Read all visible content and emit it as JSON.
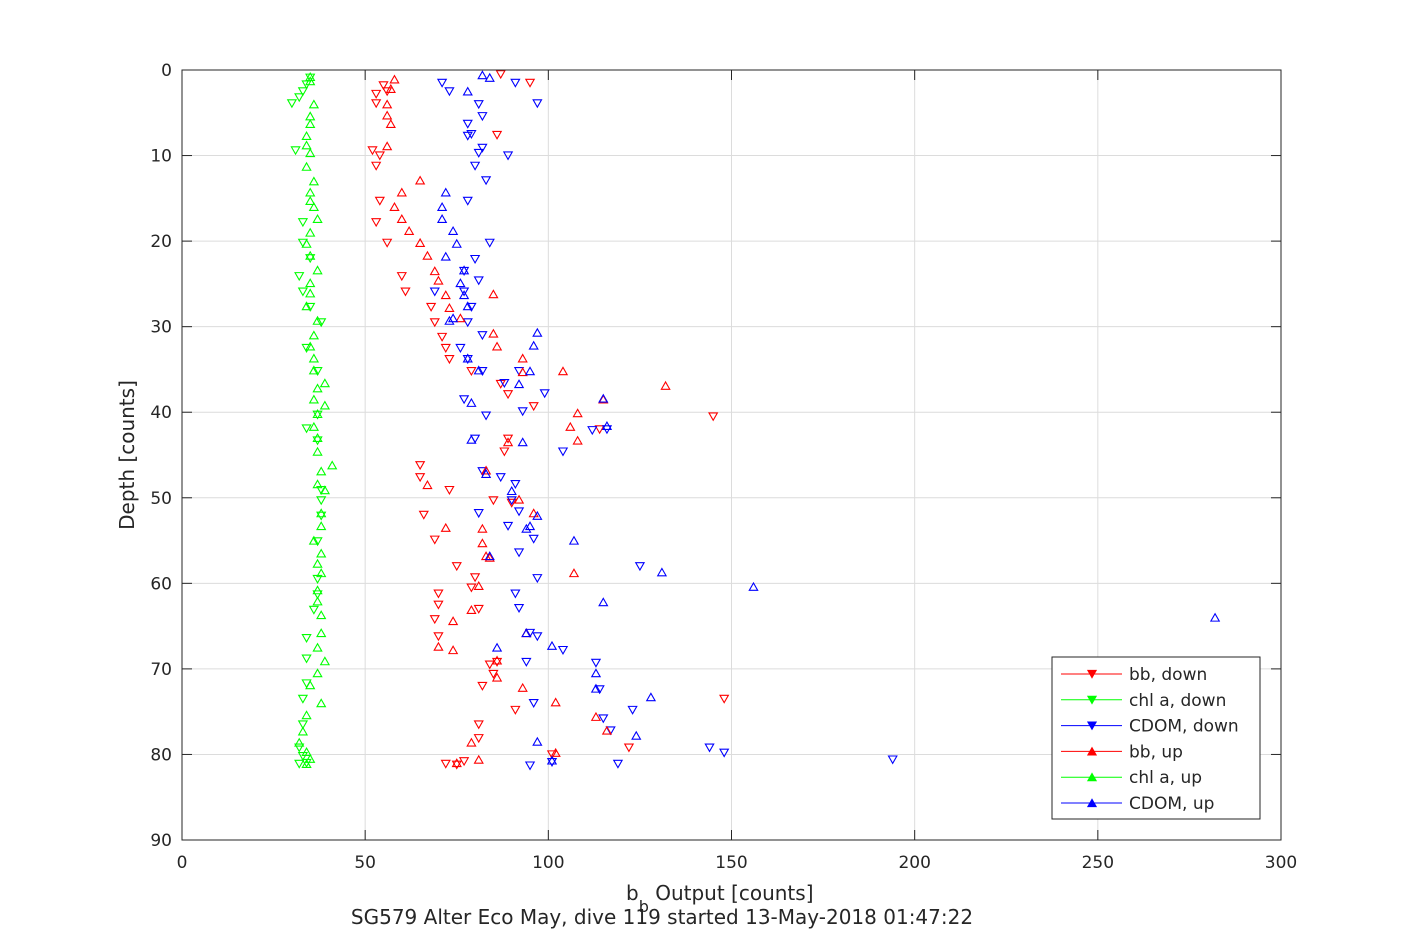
{
  "chart_data": {
    "type": "scatter",
    "xlabel_main": "b",
    "xlabel_sub": "b",
    "xlabel_rest": " Output [counts]",
    "ylabel": "Depth [counts]",
    "caption": "SG579 Alter Eco May, dive 119 started 13-May-2018 01:47:22",
    "xlim": [
      0,
      300
    ],
    "ylim": [
      0,
      90
    ],
    "y_reversed": true,
    "xticks": [
      "0",
      "50",
      "100",
      "150",
      "200",
      "250",
      "300"
    ],
    "yticks": [
      "0",
      "10",
      "20",
      "30",
      "40",
      "50",
      "60",
      "70",
      "80",
      "90"
    ],
    "grid": true,
    "legend_position": "bottom-right",
    "series": [
      {
        "name": "bb, down",
        "color": "#ff0000",
        "marker": "triangle-down",
        "points": [
          [
            87,
            0.5
          ],
          [
            95,
            1.5
          ],
          [
            55,
            1.8
          ],
          [
            56,
            2.5
          ],
          [
            53,
            2.8
          ],
          [
            53,
            3.9
          ],
          [
            52,
            9.4
          ],
          [
            54,
            10
          ],
          [
            53,
            11.2
          ],
          [
            86,
            7.6
          ],
          [
            54,
            15.3
          ],
          [
            53,
            17.8
          ],
          [
            56,
            20.2
          ],
          [
            60,
            24.1
          ],
          [
            61,
            25.9
          ],
          [
            68,
            27.7
          ],
          [
            69,
            29.5
          ],
          [
            71,
            31.2
          ],
          [
            72,
            32.5
          ],
          [
            73,
            33.8
          ],
          [
            79,
            35.2
          ],
          [
            87,
            36.7
          ],
          [
            89,
            37.9
          ],
          [
            96,
            39.3
          ],
          [
            114,
            42
          ],
          [
            145,
            40.5
          ],
          [
            88,
            44.6
          ],
          [
            65,
            46.2
          ],
          [
            65,
            47.6
          ],
          [
            73,
            49.1
          ],
          [
            85,
            50.3
          ],
          [
            90,
            50.6
          ],
          [
            66,
            52
          ],
          [
            69,
            54.9
          ],
          [
            75,
            58
          ],
          [
            80,
            59.3
          ],
          [
            70,
            61.2
          ],
          [
            70,
            62.5
          ],
          [
            79,
            60.5
          ],
          [
            81,
            63
          ],
          [
            69,
            64.2
          ],
          [
            70,
            66.2
          ],
          [
            84,
            69.5
          ],
          [
            86,
            69.2
          ],
          [
            85,
            70.6
          ],
          [
            82,
            72
          ],
          [
            91,
            74.8
          ],
          [
            81,
            76.5
          ],
          [
            81,
            78.1
          ],
          [
            122,
            79.2
          ],
          [
            101,
            80
          ],
          [
            72,
            81.1
          ],
          [
            77,
            80.8
          ],
          [
            75,
            81.2
          ],
          [
            148,
            73.5
          ],
          [
            89,
            43.1
          ]
        ]
      },
      {
        "name": "chl a, down",
        "color": "#00ff00",
        "marker": "triangle-down",
        "points": [
          [
            35,
            0.9
          ],
          [
            34,
            1.7
          ],
          [
            33,
            2.5
          ],
          [
            32,
            3.2
          ],
          [
            30,
            3.9
          ],
          [
            31,
            9.4
          ],
          [
            33,
            17.8
          ],
          [
            33,
            20.2
          ],
          [
            35,
            22
          ],
          [
            32,
            24.1
          ],
          [
            33,
            25.9
          ],
          [
            35,
            27.7
          ],
          [
            38,
            29.5
          ],
          [
            34,
            32.5
          ],
          [
            37,
            35.2
          ],
          [
            37,
            40.3
          ],
          [
            34,
            41.9
          ],
          [
            37,
            43.3
          ],
          [
            38,
            49.1
          ],
          [
            38,
            50.3
          ],
          [
            38,
            52.1
          ],
          [
            37,
            55.1
          ],
          [
            37,
            59.5
          ],
          [
            37,
            61.3
          ],
          [
            36,
            63.1
          ],
          [
            34,
            66.4
          ],
          [
            34,
            68.8
          ],
          [
            34,
            71.7
          ],
          [
            33,
            73.5
          ],
          [
            33,
            76.5
          ],
          [
            32,
            79.2
          ],
          [
            33,
            80.2
          ],
          [
            32,
            81.1
          ],
          [
            34,
            81
          ]
        ]
      },
      {
        "name": "CDOM, down",
        "color": "#0000ff",
        "marker": "triangle-down",
        "points": [
          [
            71,
            1.5
          ],
          [
            73,
            2.5
          ],
          [
            91,
            1.5
          ],
          [
            97,
            3.9
          ],
          [
            81,
            4
          ],
          [
            82,
            5.4
          ],
          [
            78,
            6.3
          ],
          [
            79,
            7.5
          ],
          [
            82,
            9.1
          ],
          [
            81,
            9.7
          ],
          [
            89,
            10
          ],
          [
            80,
            11.2
          ],
          [
            83,
            12.9
          ],
          [
            78,
            15.3
          ],
          [
            84,
            20.2
          ],
          [
            80,
            22.1
          ],
          [
            77,
            23.5
          ],
          [
            81,
            24.6
          ],
          [
            77,
            25.9
          ],
          [
            69,
            25.9
          ],
          [
            79,
            27.7
          ],
          [
            78,
            29.5
          ],
          [
            82,
            31
          ],
          [
            76,
            32.5
          ],
          [
            78,
            33.8
          ],
          [
            82,
            35.2
          ],
          [
            92,
            35.2
          ],
          [
            88,
            36.6
          ],
          [
            99,
            37.8
          ],
          [
            77,
            38.5
          ],
          [
            83,
            40.4
          ],
          [
            93,
            39.9
          ],
          [
            112,
            42.1
          ],
          [
            104,
            44.6
          ],
          [
            80,
            43.1
          ],
          [
            82,
            46.9
          ],
          [
            87,
            47.6
          ],
          [
            91,
            48.4
          ],
          [
            90,
            50.3
          ],
          [
            92,
            51.6
          ],
          [
            81,
            51.8
          ],
          [
            89,
            53.3
          ],
          [
            92,
            56.4
          ],
          [
            96,
            54.8
          ],
          [
            97,
            59.4
          ],
          [
            125,
            58
          ],
          [
            91,
            61.2
          ],
          [
            92,
            62.9
          ],
          [
            95,
            65.8
          ],
          [
            97,
            66.2
          ],
          [
            104,
            67.8
          ],
          [
            113,
            69.3
          ],
          [
            94,
            69.2
          ],
          [
            114,
            72.4
          ],
          [
            96,
            74
          ],
          [
            123,
            74.8
          ],
          [
            115,
            75.8
          ],
          [
            117,
            77.2
          ],
          [
            144,
            79.2
          ],
          [
            148,
            79.8
          ],
          [
            194,
            80.6
          ],
          [
            119,
            81.1
          ],
          [
            95,
            81.3
          ],
          [
            101,
            80.9
          ],
          [
            78,
            7.7
          ],
          [
            116,
            42
          ]
        ]
      },
      {
        "name": "bb, up",
        "color": "#ff0000",
        "marker": "triangle-up",
        "points": [
          [
            58,
            1.1
          ],
          [
            57,
            2.2
          ],
          [
            56,
            4
          ],
          [
            56,
            5.3
          ],
          [
            57,
            6.3
          ],
          [
            56,
            8.9
          ],
          [
            65,
            12.9
          ],
          [
            60,
            14.3
          ],
          [
            58,
            16
          ],
          [
            60,
            17.4
          ],
          [
            62,
            18.8
          ],
          [
            65,
            20.2
          ],
          [
            67,
            21.7
          ],
          [
            69,
            23.5
          ],
          [
            70,
            24.6
          ],
          [
            72,
            26.3
          ],
          [
            73,
            27.8
          ],
          [
            76,
            29
          ],
          [
            85,
            30.8
          ],
          [
            86,
            32.3
          ],
          [
            93,
            33.7
          ],
          [
            93,
            35.3
          ],
          [
            104,
            35.2
          ],
          [
            132,
            36.9
          ],
          [
            115,
            38.5
          ],
          [
            108,
            40.1
          ],
          [
            106,
            41.7
          ],
          [
            108,
            43.3
          ],
          [
            89,
            43.5
          ],
          [
            83,
            46.8
          ],
          [
            67,
            48.5
          ],
          [
            92,
            50.2
          ],
          [
            96,
            51.8
          ],
          [
            72,
            53.5
          ],
          [
            82,
            53.6
          ],
          [
            82,
            55.3
          ],
          [
            83,
            56.8
          ],
          [
            107,
            58.8
          ],
          [
            81,
            60.3
          ],
          [
            79,
            63.1
          ],
          [
            74,
            64.4
          ],
          [
            94,
            65.8
          ],
          [
            74,
            67.8
          ],
          [
            86,
            69
          ],
          [
            93,
            72.2
          ],
          [
            102,
            73.9
          ],
          [
            113,
            75.6
          ],
          [
            116,
            77.2
          ],
          [
            79,
            78.6
          ],
          [
            102,
            79.8
          ],
          [
            81,
            80.6
          ],
          [
            75,
            81
          ],
          [
            85,
            26.2
          ],
          [
            84,
            57
          ],
          [
            70,
            67.4
          ],
          [
            86,
            71
          ]
        ]
      },
      {
        "name": "chl a, up",
        "color": "#00ff00",
        "marker": "triangle-up",
        "points": [
          [
            35,
            0.8
          ],
          [
            35,
            1.3
          ],
          [
            36,
            4
          ],
          [
            35,
            5.4
          ],
          [
            35,
            6.3
          ],
          [
            34,
            7.7
          ],
          [
            34,
            8.8
          ],
          [
            35,
            9.7
          ],
          [
            34,
            11.3
          ],
          [
            36,
            13
          ],
          [
            35,
            14.3
          ],
          [
            35,
            15.3
          ],
          [
            36,
            16
          ],
          [
            37,
            17.4
          ],
          [
            35,
            19
          ],
          [
            34,
            20.3
          ],
          [
            35,
            21.7
          ],
          [
            37,
            23.4
          ],
          [
            35,
            24.9
          ],
          [
            35,
            26.1
          ],
          [
            34,
            27.6
          ],
          [
            37,
            29.3
          ],
          [
            36,
            31
          ],
          [
            35,
            32.3
          ],
          [
            36,
            33.7
          ],
          [
            36,
            35.1
          ],
          [
            39,
            36.6
          ],
          [
            37,
            37.2
          ],
          [
            36,
            38.5
          ],
          [
            39,
            39.2
          ],
          [
            37,
            40.2
          ],
          [
            36,
            41.7
          ],
          [
            37,
            43
          ],
          [
            37,
            44.6
          ],
          [
            41,
            46.2
          ],
          [
            38,
            46.9
          ],
          [
            37,
            48.4
          ],
          [
            39,
            49.1
          ],
          [
            38,
            51.8
          ],
          [
            38,
            53.3
          ],
          [
            36,
            55
          ],
          [
            38,
            56.5
          ],
          [
            37,
            57.7
          ],
          [
            38,
            58.8
          ],
          [
            37,
            60.8
          ],
          [
            37,
            62.1
          ],
          [
            38,
            63.7
          ],
          [
            38,
            65.8
          ],
          [
            37,
            67.5
          ],
          [
            39,
            69.1
          ],
          [
            37,
            70.5
          ],
          [
            35,
            71.9
          ],
          [
            38,
            74
          ],
          [
            34,
            75.4
          ],
          [
            33,
            77.3
          ],
          [
            32,
            78.6
          ],
          [
            34,
            79.7
          ],
          [
            35,
            80.5
          ],
          [
            34,
            81.1
          ]
        ]
      },
      {
        "name": "CDOM, up",
        "color": "#0000ff",
        "marker": "triangle-up",
        "points": [
          [
            82,
            0.6
          ],
          [
            84,
            0.9
          ],
          [
            78,
            2.5
          ],
          [
            72,
            14.3
          ],
          [
            71,
            16
          ],
          [
            71,
            17.4
          ],
          [
            74,
            18.8
          ],
          [
            75,
            20.3
          ],
          [
            72,
            21.8
          ],
          [
            77,
            23.4
          ],
          [
            76,
            24.9
          ],
          [
            77,
            26.3
          ],
          [
            78,
            27.6
          ],
          [
            73,
            29.3
          ],
          [
            74,
            29
          ],
          [
            97,
            30.7
          ],
          [
            96,
            32.2
          ],
          [
            78,
            33.7
          ],
          [
            81,
            35.1
          ],
          [
            92,
            36.7
          ],
          [
            79,
            38.9
          ],
          [
            95,
            35.2
          ],
          [
            115,
            38.4
          ],
          [
            116,
            41.6
          ],
          [
            79,
            43.2
          ],
          [
            93,
            43.5
          ],
          [
            83,
            47.2
          ],
          [
            90,
            49.2
          ],
          [
            97,
            52.1
          ],
          [
            95,
            53.3
          ],
          [
            84,
            56.8
          ],
          [
            107,
            55
          ],
          [
            131,
            58.7
          ],
          [
            156,
            60.4
          ],
          [
            115,
            62.2
          ],
          [
            94,
            65.8
          ],
          [
            101,
            67.3
          ],
          [
            86,
            67.5
          ],
          [
            113,
            70.5
          ],
          [
            113,
            72.3
          ],
          [
            128,
            73.3
          ],
          [
            124,
            77.8
          ],
          [
            97,
            78.5
          ],
          [
            101,
            80.7
          ],
          [
            282,
            64
          ],
          [
            94,
            53.6
          ]
        ]
      }
    ]
  }
}
